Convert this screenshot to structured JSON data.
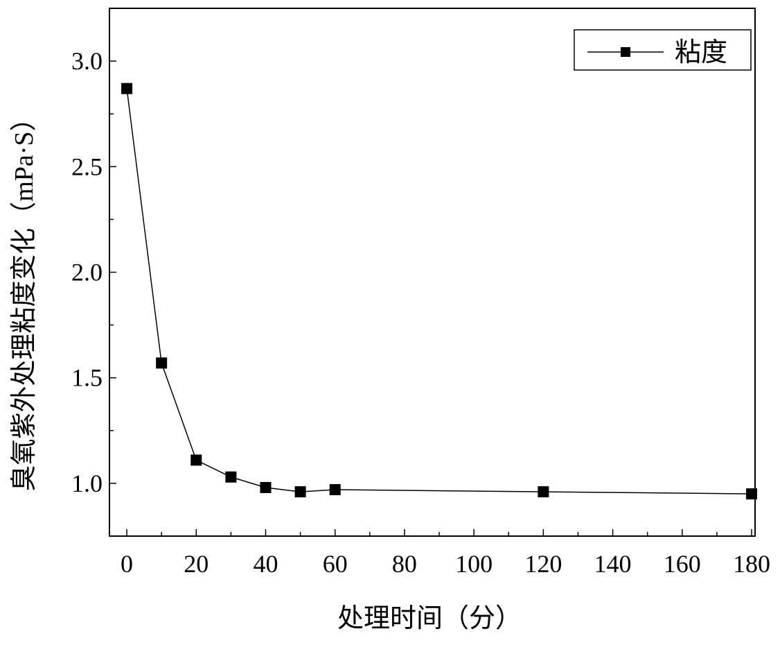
{
  "chart_data": {
    "type": "line",
    "title": "",
    "xlabel": "处理时间（分）",
    "ylabel": "臭氧紫外处理粘度变化（mPa·S）",
    "xlim": [
      -5,
      181
    ],
    "ylim": [
      0.75,
      3.25
    ],
    "x_ticks": [
      0,
      20,
      40,
      60,
      80,
      100,
      120,
      140,
      160,
      180
    ],
    "x_tick_labels": [
      "0",
      "20",
      "40",
      "60",
      "80",
      "100",
      "120",
      "140",
      "160",
      "180"
    ],
    "y_ticks": [
      1.0,
      1.5,
      2.0,
      2.5,
      3.0
    ],
    "y_tick_labels": [
      "1.0",
      "1.5",
      "2.0",
      "2.5",
      "3.0"
    ],
    "grid": false,
    "legend_position": "top-right",
    "series": [
      {
        "name": "粘度",
        "marker": "square",
        "color": "#000000",
        "x": [
          0,
          10,
          20,
          30,
          40,
          50,
          60,
          120,
          180
        ],
        "y": [
          2.87,
          1.57,
          1.11,
          1.03,
          0.98,
          0.96,
          0.97,
          0.96,
          0.95
        ]
      }
    ]
  }
}
